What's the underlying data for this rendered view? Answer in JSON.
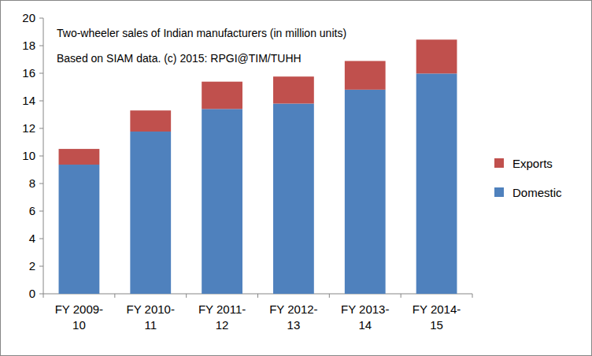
{
  "chart_data": {
    "type": "bar",
    "stacked": true,
    "title": "Two-wheeler sales of Indian manufacturers (in million units)",
    "subtitle": "Based on SIAM data. (c) 2015: RPGI@TIM/TUHH",
    "categories": [
      "FY 2009-10",
      "FY 2010-11",
      "FY 2011-12",
      "FY 2012-13",
      "FY 2013-14",
      "FY 2014-15"
    ],
    "series": [
      {
        "name": "Domestic",
        "color": "#4f81bd",
        "values": [
          9.37,
          11.77,
          13.41,
          13.8,
          14.81,
          15.98
        ]
      },
      {
        "name": "Exports",
        "color": "#c0504d",
        "values": [
          1.14,
          1.53,
          1.98,
          1.96,
          2.08,
          2.46
        ]
      }
    ],
    "ylim": [
      0,
      20
    ],
    "yticks": [
      0,
      2,
      4,
      6,
      8,
      10,
      12,
      14,
      16,
      18,
      20
    ],
    "grid": false,
    "legend": "right"
  }
}
